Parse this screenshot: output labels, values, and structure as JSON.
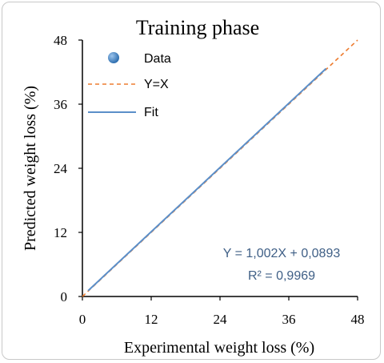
{
  "chart_data": {
    "type": "scatter",
    "title": "Training phase",
    "xlabel": "Experimental weight loss (%)",
    "ylabel": "Predicted weight loss (%)",
    "xlim": [
      0,
      48
    ],
    "ylim": [
      0,
      48
    ],
    "xticks": [
      "0",
      "12",
      "24",
      "36",
      "48"
    ],
    "yticks": [
      "0",
      "12",
      "24",
      "36",
      "48"
    ],
    "grid": false,
    "legend_position": "top-left",
    "series": [
      {
        "name": "Data",
        "kind": "points",
        "color": "#2f6fb0",
        "points": [
          [
            1,
            1.09
          ],
          [
            42.5,
            42.68
          ]
        ]
      },
      {
        "name": "Y=X",
        "kind": "dashed-line",
        "color": "#ed7d31",
        "x": [
          0,
          48
        ],
        "y": [
          0,
          48
        ]
      },
      {
        "name": "Fit",
        "kind": "line",
        "color": "#5b8fc9",
        "x": [
          1,
          42.5
        ],
        "y": [
          1.09,
          42.68
        ]
      }
    ],
    "annotations": [
      "Y = 1,002X + 0,0893",
      "R² = 0,9969"
    ]
  }
}
